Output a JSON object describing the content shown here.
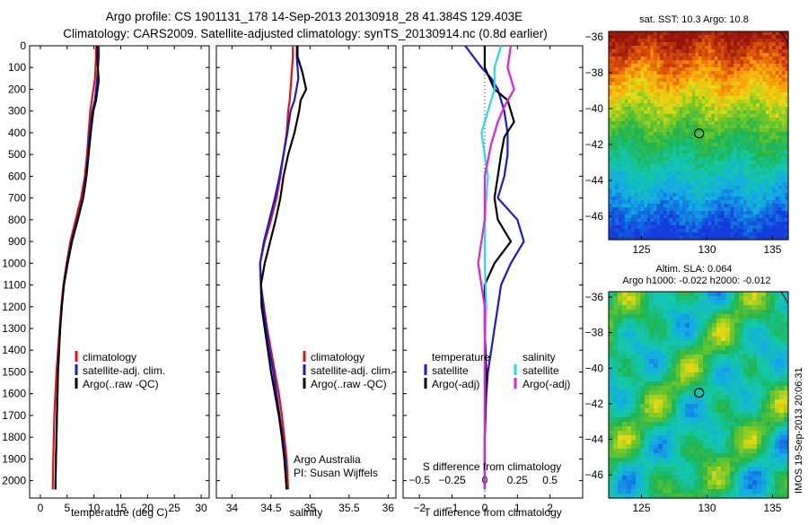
{
  "header": {
    "line1": "Argo profile: CS 1901131_178 14-Sep-2013 20130918_28 41.384S 129.403E",
    "line2": "Climatology: CARS2009. Satellite-adjusted climatology: synTS_20130914.nc (0.8d earlier)"
  },
  "side_note": "IMOS 19-Sep-2013 20:06:31",
  "chart_data": [
    {
      "type": "line",
      "id": "temperature_profile",
      "xlabel": "temperature (deg C)",
      "ylabel": "",
      "xlim": [
        -2,
        31.5
      ],
      "ylim": [
        2080,
        0
      ],
      "x_ticks": [
        0,
        5,
        10,
        15,
        20,
        25,
        30
      ],
      "y_ticks": [
        0,
        100,
        200,
        300,
        400,
        500,
        600,
        700,
        800,
        900,
        1000,
        1100,
        1200,
        1300,
        1400,
        1500,
        1600,
        1700,
        1800,
        1900,
        2000
      ],
      "legend": [
        "climatology",
        "satellite-adj. clim.",
        "Argo(..raw -QC)"
      ],
      "legend_location": "lower-right",
      "series": [
        {
          "name": "climatology",
          "color": "#e81010",
          "x": [
            10.4,
            10.4,
            10.2,
            9.6,
            9.3,
            9.0,
            8.7,
            8.3,
            7.6,
            6.6,
            5.6,
            4.9,
            4.3,
            3.9,
            3.6,
            3.3,
            3.0,
            2.8,
            2.6,
            2.5,
            2.4,
            2.3
          ],
          "y": [
            0,
            50,
            150,
            250,
            300,
            400,
            500,
            600,
            700,
            800,
            900,
            1000,
            1100,
            1200,
            1300,
            1400,
            1500,
            1600,
            1700,
            1800,
            1900,
            2040
          ]
        },
        {
          "name": "satellite-adj. clim.",
          "color": "#1a1ad6",
          "x": [
            10.9,
            10.9,
            10.6,
            10.2,
            9.7,
            9.2,
            8.9,
            8.5,
            7.9,
            6.9,
            5.8,
            5.0,
            4.4,
            4.0,
            3.7,
            3.5,
            3.3,
            3.2,
            3.1,
            3.0,
            2.9,
            2.8
          ],
          "y": [
            0,
            50,
            150,
            250,
            300,
            400,
            500,
            600,
            700,
            800,
            900,
            1000,
            1100,
            1200,
            1300,
            1400,
            1500,
            1600,
            1700,
            1800,
            1900,
            2040
          ]
        },
        {
          "name": "Argo(..raw -QC)",
          "color": "#000000",
          "x": [
            10.6,
            10.6,
            10.9,
            10.4,
            9.9,
            9.4,
            9.0,
            8.6,
            8.0,
            7.0,
            5.9,
            5.1,
            4.4,
            4.0,
            3.7,
            3.5,
            3.3,
            3.2,
            3.1,
            3.0,
            2.9,
            2.8
          ],
          "y": [
            0,
            60,
            160,
            250,
            300,
            400,
            500,
            600,
            700,
            800,
            900,
            1000,
            1100,
            1200,
            1300,
            1400,
            1500,
            1600,
            1700,
            1800,
            1900,
            2040
          ]
        }
      ]
    },
    {
      "type": "line",
      "id": "salinity_profile",
      "xlabel": "salinity",
      "xlim": [
        33.8,
        36.1
      ],
      "ylim": [
        2080,
        0
      ],
      "x_ticks": [
        34,
        34.5,
        35,
        35.5,
        36
      ],
      "legend": [
        "climatology",
        "satellite-adj. clim.",
        "Argo(..raw -QC)"
      ],
      "legend_location": "lower-right",
      "annotations": [
        "Argo Australia",
        "PI: Susan Wijffels"
      ],
      "series": [
        {
          "name": "climatology",
          "color": "#e81010",
          "x": [
            34.78,
            34.78,
            34.76,
            34.74,
            34.72,
            34.7,
            34.66,
            34.62,
            34.57,
            34.5,
            34.42,
            34.36,
            34.37,
            34.41,
            34.45,
            34.5,
            34.55,
            34.6,
            34.64,
            34.67,
            34.7,
            34.72
          ],
          "y": [
            0,
            50,
            150,
            250,
            300,
            400,
            500,
            600,
            700,
            800,
            900,
            1000,
            1100,
            1200,
            1300,
            1400,
            1500,
            1600,
            1700,
            1800,
            1900,
            2040
          ]
        },
        {
          "name": "satellite-adj. clim.",
          "color": "#1a1ad6",
          "x": [
            34.83,
            34.83,
            34.85,
            34.8,
            34.75,
            34.71,
            34.66,
            34.61,
            34.55,
            34.48,
            34.41,
            34.36,
            34.37,
            34.4,
            34.44,
            34.48,
            34.53,
            34.57,
            34.61,
            34.65,
            34.68,
            34.7
          ],
          "y": [
            0,
            50,
            150,
            250,
            300,
            400,
            500,
            600,
            700,
            800,
            900,
            1000,
            1100,
            1200,
            1300,
            1400,
            1500,
            1600,
            1700,
            1800,
            1900,
            2040
          ]
        },
        {
          "name": "Argo(..raw -QC)",
          "color": "#000000",
          "x": [
            34.84,
            34.84,
            34.9,
            34.95,
            34.88,
            34.86,
            34.8,
            34.72,
            34.66,
            34.62,
            34.56,
            34.49,
            34.42,
            34.37,
            34.38,
            34.42,
            34.46,
            34.5,
            34.55,
            34.6,
            34.64,
            34.67,
            34.7
          ],
          "y": [
            0,
            50,
            120,
            200,
            250,
            300,
            400,
            500,
            600,
            700,
            800,
            900,
            1000,
            1100,
            1200,
            1300,
            1400,
            1500,
            1600,
            1700,
            1800,
            1900,
            2040
          ]
        }
      ]
    },
    {
      "type": "line",
      "id": "difference_profile",
      "xlabel": "T difference from climatology",
      "xlabel2": "S difference from climatology",
      "xlim": [
        -2.5,
        3.0
      ],
      "ylim": [
        2080,
        0
      ],
      "x_ticks": [
        -2,
        -1,
        0,
        1,
        2
      ],
      "x_ticks_top": [
        -0.5,
        -0.25,
        0,
        0.25,
        0.5
      ],
      "legend_groups": [
        {
          "title": "temperature",
          "entries": [
            "satellite",
            "Argo(-adj)"
          ]
        },
        {
          "title": "salinity",
          "entries": [
            "satellite",
            "Argo(-adj)"
          ]
        }
      ],
      "series": [
        {
          "name": "temperature satellite",
          "color": "#1a1ad6",
          "x": [
            -0.6,
            -0.3,
            -0.1,
            0.2,
            0.4,
            0.6,
            0.7,
            0.7,
            0.6,
            0.4,
            1.0,
            1.2,
            0.8,
            0.5,
            0.4,
            0.3,
            0.2,
            0.1,
            0.05,
            0.0,
            0.0
          ],
          "y": [
            0,
            60,
            100,
            150,
            200,
            300,
            400,
            500,
            600,
            700,
            800,
            900,
            1000,
            1100,
            1200,
            1300,
            1400,
            1500,
            1600,
            1800,
            2040
          ]
        },
        {
          "name": "temperature Argo(-adj)",
          "color": "#000000",
          "x": [
            0.0,
            0.0,
            0.3,
            0.7,
            0.9,
            0.6,
            0.5,
            0.4,
            0.3,
            0.4,
            0.8,
            0.3,
            0.0,
            0.0,
            0.05,
            0.0,
            0.0
          ],
          "y": [
            0,
            100,
            200,
            250,
            350,
            420,
            500,
            600,
            700,
            800,
            900,
            1000,
            1100,
            1300,
            1500,
            1800,
            2040
          ]
        },
        {
          "name": "salinity satellite",
          "color": "#22dde8",
          "x": [
            0.5,
            0.4,
            0.3,
            0.3,
            0.1,
            -0.1,
            0.0,
            0.1,
            0.0,
            0.0,
            0.05,
            0.0,
            0.0,
            0.0,
            0.0,
            0.0
          ],
          "y": [
            0,
            50,
            100,
            200,
            300,
            400,
            500,
            600,
            800,
            1000,
            1200,
            1400,
            1600,
            1800,
            1900,
            2040
          ]
        },
        {
          "name": "salinity Argo(-adj)",
          "color": "#e020e0",
          "x": [
            0.8,
            0.7,
            0.9,
            0.6,
            0.4,
            0.2,
            0.0,
            0.0,
            -0.2,
            0.0,
            0.0,
            0.0
          ],
          "y": [
            0,
            100,
            200,
            280,
            350,
            450,
            600,
            800,
            1000,
            1200,
            1500,
            2040
          ]
        }
      ]
    },
    {
      "type": "heatmap",
      "id": "sst_map",
      "title": "sat. SST: 10.3 Argo: 10.8",
      "xlim": [
        122.5,
        136.2
      ],
      "ylim": [
        -47.3,
        -35.7
      ],
      "x_ticks": [
        125,
        130,
        135
      ],
      "y_ticks": [
        -36,
        -38,
        -40,
        -42,
        -44,
        -46
      ],
      "marker": {
        "lon": 129.4,
        "lat": -41.384
      }
    },
    {
      "type": "heatmap",
      "id": "sla_map",
      "title": "Altim. SLA: 0.064",
      "subtitle": "Argo h1000: -0.022 h2000: -0.012",
      "xlim": [
        122.5,
        136.2
      ],
      "ylim": [
        -47.3,
        -35.7
      ],
      "x_ticks": [
        125,
        130,
        135
      ],
      "y_ticks": [
        -36,
        -38,
        -40,
        -42,
        -44,
        -46
      ],
      "marker": {
        "lon": 129.4,
        "lat": -41.384
      }
    }
  ]
}
